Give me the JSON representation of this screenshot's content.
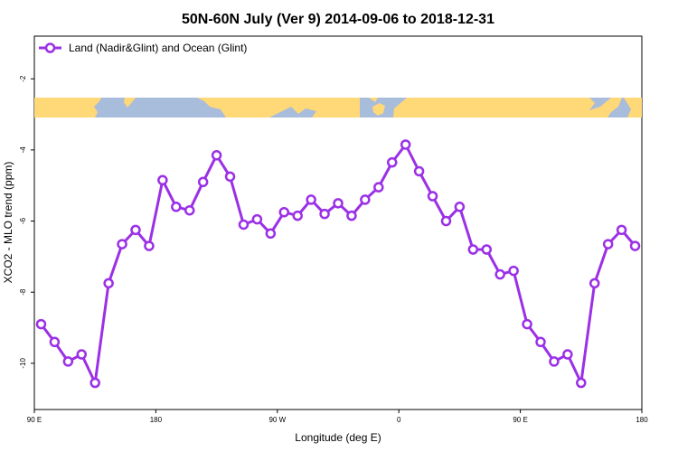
{
  "chart_data": {
    "type": "line",
    "title": "50N-60N July (Ver 9)   2014-09-06 to 2018-12-31",
    "xlabel": "Longitude (deg E)",
    "ylabel": "XCO2 - MLO trend (ppm)",
    "x_ticks": [
      {
        "value": 90,
        "label": "90 E"
      },
      {
        "value": 180,
        "label": "180"
      },
      {
        "value": 270,
        "label": "90 W"
      },
      {
        "value": 360,
        "label": "0"
      },
      {
        "value": 450,
        "label": "90 E"
      },
      {
        "value": 540,
        "label": "180"
      }
    ],
    "y_ticks": [
      -2,
      -4,
      -6,
      -8,
      -10
    ],
    "xlim": [
      90,
      540
    ],
    "ylim": [
      -11.3,
      -0.8
    ],
    "grid": false,
    "legend_position": "top-left",
    "colors": {
      "series": "#9b30e6",
      "ocean": "#a8bcdc",
      "land": "#ffd877"
    },
    "series": [
      {
        "name": "Land (Nadir&Glint) and Ocean (Glint)",
        "x": [
          95,
          105,
          115,
          125,
          135,
          145,
          155,
          165,
          175,
          185,
          195,
          205,
          215,
          225,
          235,
          245,
          255,
          265,
          275,
          285,
          295,
          305,
          315,
          325,
          335,
          345,
          355,
          365,
          375,
          385,
          395,
          405,
          415,
          425,
          435,
          445,
          455,
          465,
          475,
          485,
          495,
          505,
          515,
          525,
          535
        ],
        "y": [
          -8.9,
          -9.4,
          -9.95,
          -9.75,
          -10.55,
          -7.75,
          -6.65,
          -6.25,
          -6.7,
          -4.85,
          -5.6,
          -5.7,
          -4.9,
          -4.15,
          -4.75,
          -6.1,
          -5.95,
          -6.35,
          -5.75,
          -5.85,
          -5.4,
          -5.8,
          -5.5,
          -5.85,
          -5.4,
          -5.05,
          -4.35,
          -3.85,
          -4.6,
          -5.3,
          -6.0,
          -5.6,
          -6.8,
          -6.8,
          -7.5,
          -7.4,
          -8.9,
          -9.4,
          -9.95,
          -9.75,
          -10.55,
          -7.75,
          -6.65,
          -6.25,
          -6.7
        ]
      }
    ]
  }
}
